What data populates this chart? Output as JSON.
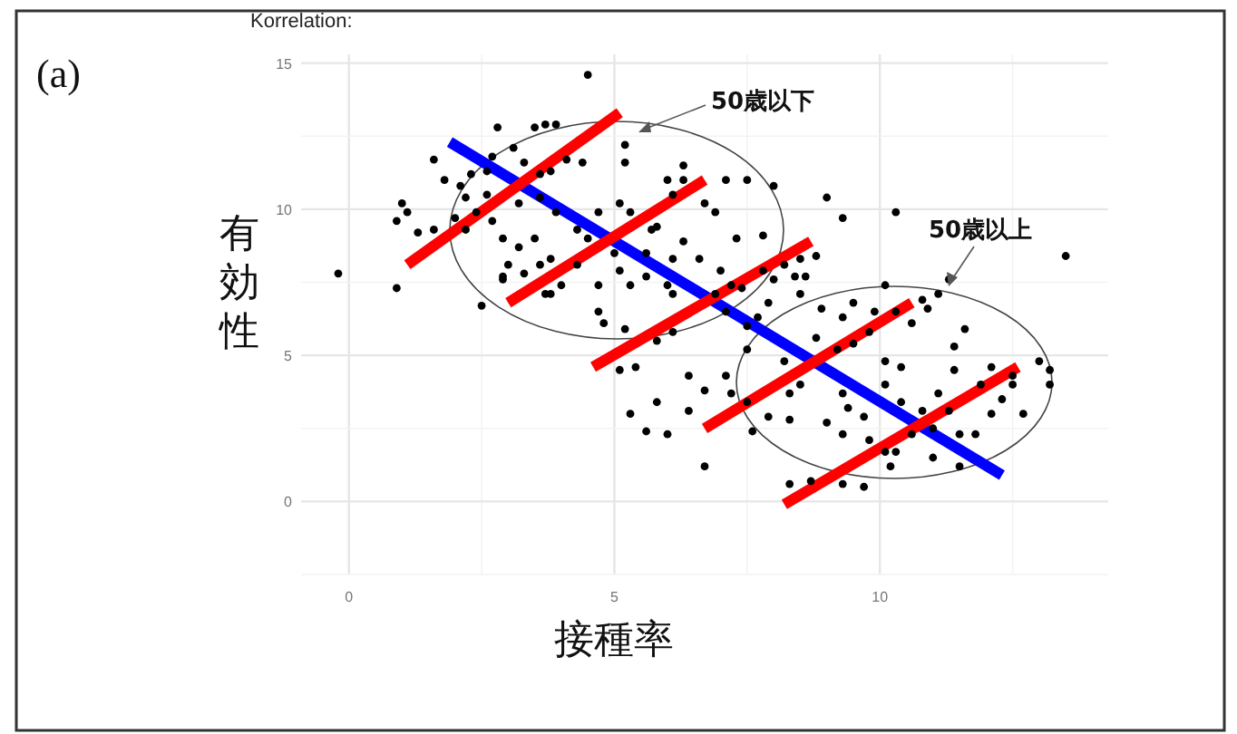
{
  "chart_data": {
    "type": "scatter",
    "title": "Korrelation:",
    "xlabel": "接種率",
    "ylabel": "有効性",
    "annotations": [
      "(a)",
      "50歳以下",
      "50歳以上"
    ],
    "xlim": [
      -0.9,
      14.3
    ],
    "ylim": [
      -2.5,
      15.3
    ],
    "xticks": [
      0,
      {
        "value": 2.5,
        "label": null
      },
      {
        "value": 5,
        "label": "5"
      },
      {
        "value": 7.5,
        "label": null
      },
      10,
      {
        "value": 12.5,
        "label": null
      }
    ],
    "yticks": [
      {
        "value": -2.5,
        "label": null
      },
      0,
      {
        "value": 2.5,
        "label": null
      },
      5,
      {
        "value": 7.5,
        "label": null
      },
      10,
      {
        "value": 12.5,
        "label": null
      },
      15
    ],
    "grid": true,
    "marker": "circle",
    "series": [
      {
        "color": "#000000",
        "x": [
          4.5,
          3.5,
          3.7,
          3.9,
          2.8,
          1.6,
          1.0,
          0.9,
          1.1,
          1.3,
          0.9,
          -0.2,
          5.2,
          5.2,
          6.3,
          6.3,
          7.1,
          7.5,
          8.0,
          9.0,
          9.3,
          10.3,
          13.5,
          11.3,
          10.1,
          6.7,
          6.9,
          6.6,
          6.1,
          5.7,
          5.8,
          5.3,
          4.7,
          5.1,
          4.3,
          4.5,
          5.0,
          4.3,
          3.8,
          3.6,
          3.2,
          3.5,
          2.9,
          3.0,
          2.9,
          3.3,
          4.0,
          3.7,
          4.7,
          5.1,
          5.3,
          5.6,
          6.0,
          6.1,
          7.0,
          7.2,
          7.4,
          7.8,
          8.0,
          8.2,
          8.5,
          8.8,
          8.6,
          7.8,
          7.3,
          1.8,
          2.1,
          2.3,
          2.6,
          2.7,
          3.1,
          3.3,
          3.6,
          3.8,
          4.1,
          4.4,
          2.2,
          2.6,
          2.4,
          2.0,
          1.6,
          2.2,
          2.7,
          3.2,
          3.6,
          3.9,
          6.0,
          6.1,
          6.3,
          5.6,
          2.5,
          2.9,
          3.8,
          4.7,
          4.8,
          5.2,
          5.1,
          5.4,
          5.8,
          6.1,
          6.4,
          6.7,
          5.8,
          5.3,
          5.6,
          6.0,
          6.4,
          6.7,
          6.9,
          7.1,
          7.5,
          7.5,
          7.1,
          7.2,
          7.5,
          7.6,
          7.9,
          8.2,
          8.3,
          8.3,
          8.5,
          8.8,
          9.2,
          9.3,
          9.5,
          9.8,
          9.3,
          9.0,
          9.3,
          9.4,
          9.7,
          9.8,
          10.1,
          10.3,
          10.2,
          9.7,
          9.3,
          8.7,
          8.3,
          10.1,
          10.4,
          10.1,
          10.4,
          10.8,
          11.0,
          10.6,
          11.0,
          11.5,
          11.5,
          11.8,
          11.3,
          11.1,
          11.4,
          11.4,
          11.6,
          10.6,
          10.3,
          10.9,
          10.8,
          11.1,
          12.1,
          12.1,
          12.3,
          12.7,
          12.5,
          13.0,
          13.2,
          13.2,
          12.5,
          11.9,
          7.7,
          7.9,
          8.5,
          8.9,
          9.5,
          9.9,
          8.4
        ],
        "values": [
          14.6,
          12.8,
          12.9,
          12.9,
          12.8,
          11.7,
          10.2,
          9.6,
          9.9,
          9.2,
          7.3,
          7.8,
          11.6,
          12.2,
          11.5,
          11.0,
          11.0,
          11.0,
          10.8,
          10.4,
          9.7,
          9.9,
          8.4,
          7.6,
          7.4,
          10.2,
          9.9,
          8.3,
          8.3,
          9.3,
          9.4,
          9.9,
          9.9,
          10.2,
          9.3,
          9.0,
          8.5,
          8.1,
          8.3,
          8.1,
          8.7,
          9.0,
          9.0,
          8.1,
          7.6,
          7.8,
          7.4,
          7.1,
          7.4,
          7.9,
          7.4,
          7.7,
          7.4,
          7.1,
          7.9,
          7.4,
          7.3,
          7.9,
          7.6,
          8.1,
          8.3,
          8.4,
          7.7,
          9.1,
          9.0,
          11.0,
          10.8,
          11.2,
          11.3,
          11.8,
          12.1,
          11.6,
          11.2,
          11.3,
          11.7,
          11.6,
          10.4,
          10.5,
          9.9,
          9.7,
          9.3,
          9.3,
          9.6,
          10.2,
          10.4,
          9.9,
          11.0,
          10.5,
          8.9,
          8.5,
          6.7,
          7.7,
          7.1,
          6.5,
          6.1,
          5.9,
          4.5,
          4.6,
          5.5,
          5.8,
          4.3,
          3.8,
          3.4,
          3.0,
          2.4,
          2.3,
          3.1,
          1.2,
          7.1,
          6.5,
          6.0,
          5.2,
          4.3,
          3.7,
          3.4,
          2.4,
          2.9,
          4.8,
          3.7,
          2.8,
          4.0,
          5.6,
          5.2,
          6.3,
          5.4,
          5.8,
          3.7,
          2.7,
          2.3,
          3.2,
          2.9,
          2.1,
          1.7,
          1.7,
          1.2,
          0.5,
          0.6,
          0.7,
          0.6,
          4.8,
          4.6,
          4.0,
          3.4,
          3.1,
          2.5,
          2.3,
          1.5,
          1.2,
          2.3,
          2.3,
          3.1,
          3.7,
          4.5,
          5.3,
          5.9,
          6.1,
          6.5,
          6.6,
          6.9,
          7.1,
          4.6,
          3.0,
          3.5,
          3.0,
          4.0,
          4.8,
          4.5,
          4.0,
          4.3,
          4.0,
          6.3,
          6.8,
          7.1,
          6.6,
          6.8,
          6.5,
          7.7
        ]
      },
      {
        "type": "line",
        "marker": "none",
        "color": "#0000ff",
        "x": [
          1.9,
          12.3
        ],
        "values": [
          12.3,
          0.9
        ]
      },
      {
        "type": "line",
        "color": "#ff0000",
        "marker": "none",
        "x": [
          1.1,
          5.1
        ],
        "values": [
          8.1,
          13.3
        ]
      },
      {
        "type": "line",
        "color": "#ff0000",
        "marker": "none",
        "x": [
          3.0,
          6.7
        ],
        "values": [
          6.8,
          11.0
        ]
      },
      {
        "type": "line",
        "color": "#ff0000",
        "marker": "none",
        "x": [
          4.6,
          8.7
        ],
        "values": [
          4.6,
          8.9
        ]
      },
      {
        "type": "line",
        "color": "#ff0000",
        "marker": "none",
        "x": [
          6.7,
          10.6
        ],
        "values": [
          2.5,
          6.8
        ]
      },
      {
        "type": "line",
        "color": "#ff0000",
        "marker": "none",
        "x": [
          8.2,
          12.6
        ],
        "values": [
          -0.1,
          4.6
        ]
      }
    ]
  }
}
